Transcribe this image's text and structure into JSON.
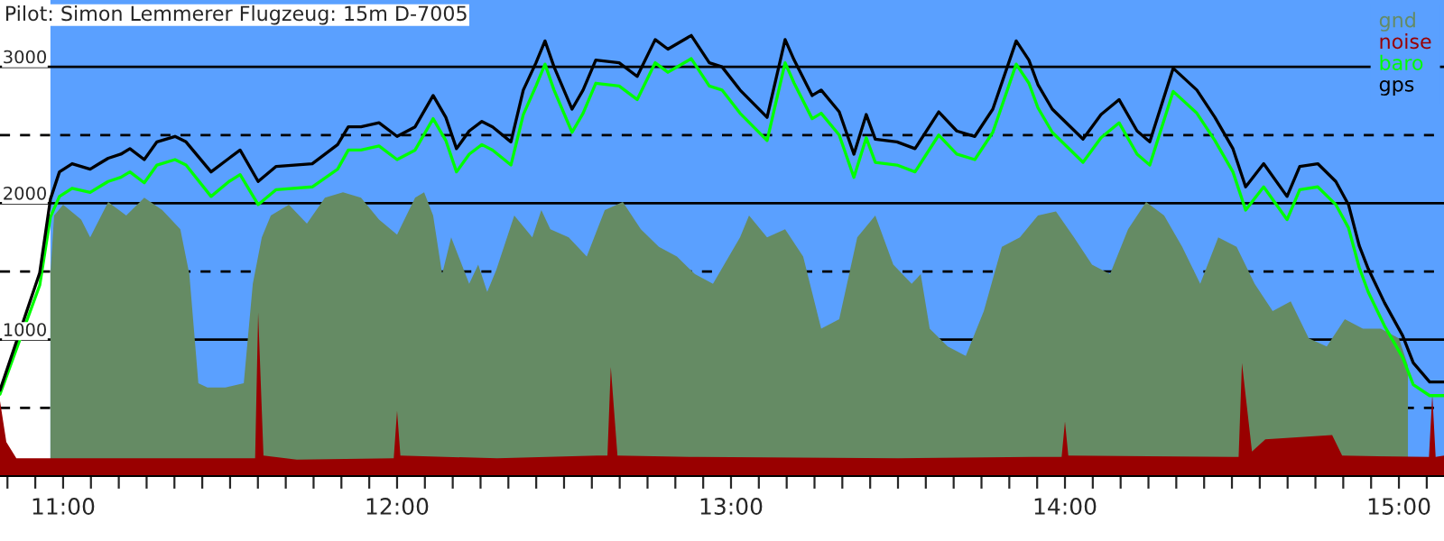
{
  "chart_data": {
    "type": "line",
    "title": "Pilot: Simon Lemmerer Flugzeug: 15m D-7005",
    "xlim": [
      10.811,
      15.135
    ],
    "ylim": [
      0,
      3490
    ],
    "xticks": [
      {
        "value": 10.8333,
        "label": null
      },
      {
        "value": 10.9167,
        "label": null
      },
      {
        "value": 11,
        "label": "11:00"
      },
      {
        "value": 11.0833,
        "label": null
      },
      {
        "value": 11.1667,
        "label": null
      },
      {
        "value": 11.25,
        "label": null
      },
      {
        "value": 11.3333,
        "label": null
      },
      {
        "value": 11.4167,
        "label": null
      },
      {
        "value": 11.5,
        "label": null
      },
      {
        "value": 11.5833,
        "label": null
      },
      {
        "value": 11.6667,
        "label": null
      },
      {
        "value": 11.75,
        "label": null
      },
      {
        "value": 11.8333,
        "label": null
      },
      {
        "value": 11.9167,
        "label": null
      },
      {
        "value": 12,
        "label": "12:00"
      },
      {
        "value": 12.0833,
        "label": null
      },
      {
        "value": 12.1667,
        "label": null
      },
      {
        "value": 12.25,
        "label": null
      },
      {
        "value": 12.3333,
        "label": null
      },
      {
        "value": 12.4167,
        "label": null
      },
      {
        "value": 12.5,
        "label": null
      },
      {
        "value": 12.5833,
        "label": null
      },
      {
        "value": 12.6667,
        "label": null
      },
      {
        "value": 12.75,
        "label": null
      },
      {
        "value": 12.8333,
        "label": null
      },
      {
        "value": 12.9167,
        "label": null
      },
      {
        "value": 13,
        "label": "13:00"
      },
      {
        "value": 13.0833,
        "label": null
      },
      {
        "value": 13.1667,
        "label": null
      },
      {
        "value": 13.25,
        "label": null
      },
      {
        "value": 13.3333,
        "label": null
      },
      {
        "value": 13.4167,
        "label": null
      },
      {
        "value": 13.5,
        "label": null
      },
      {
        "value": 13.5833,
        "label": null
      },
      {
        "value": 13.6667,
        "label": null
      },
      {
        "value": 13.75,
        "label": null
      },
      {
        "value": 13.8333,
        "label": null
      },
      {
        "value": 13.9167,
        "label": null
      },
      {
        "value": 14,
        "label": "14:00"
      },
      {
        "value": 14.0833,
        "label": null
      },
      {
        "value": 14.1667,
        "label": null
      },
      {
        "value": 14.25,
        "label": null
      },
      {
        "value": 14.3333,
        "label": null
      },
      {
        "value": 14.4167,
        "label": null
      },
      {
        "value": 14.5,
        "label": null
      },
      {
        "value": 14.5833,
        "label": null
      },
      {
        "value": 14.6667,
        "label": null
      },
      {
        "value": 14.75,
        "label": null
      },
      {
        "value": 14.8333,
        "label": null
      },
      {
        "value": 14.9167,
        "label": null
      },
      {
        "value": 15,
        "label": "15:00"
      },
      {
        "value": 15.0833,
        "label": null
      }
    ],
    "yticks": [
      {
        "value": 500,
        "label": null
      },
      1000,
      {
        "value": 1500,
        "label": null
      },
      2000,
      {
        "value": 2500,
        "label": null
      },
      3000
    ],
    "grid": "y",
    "legend": "top right",
    "bands": [
      {
        "axis": "x",
        "from": 10.962,
        "to": 15.135,
        "color": "#5aa0ff"
      }
    ],
    "series": [
      {
        "name": "gnd",
        "type": "area",
        "color": "#658b64",
        "x": [
          10.962,
          10.973,
          11.0,
          11.054,
          11.081,
          11.135,
          11.189,
          11.243,
          11.297,
          11.351,
          11.378,
          11.405,
          11.432,
          11.486,
          11.541,
          11.568,
          11.595,
          11.622,
          11.676,
          11.73,
          11.784,
          11.838,
          11.892,
          11.946,
          12.0,
          12.054,
          12.081,
          12.108,
          12.135,
          12.162,
          12.216,
          12.243,
          12.27,
          12.297,
          12.351,
          12.405,
          12.432,
          12.459,
          12.514,
          12.568,
          12.622,
          12.676,
          12.73,
          12.784,
          12.838,
          12.892,
          12.946,
          13.027,
          13.054,
          13.108,
          13.162,
          13.216,
          13.27,
          13.324,
          13.378,
          13.432,
          13.486,
          13.541,
          13.568,
          13.595,
          13.649,
          13.703,
          13.757,
          13.811,
          13.865,
          13.919,
          13.973,
          14.027,
          14.081,
          14.135,
          14.189,
          14.243,
          14.297,
          14.351,
          14.405,
          14.459,
          14.514,
          14.568,
          14.622,
          14.676,
          14.73,
          14.784,
          14.838,
          14.892,
          14.946,
          15.0,
          15.027
        ],
        "values": [
          1480,
          1910,
          1990,
          1880,
          1750,
          2010,
          1910,
          2040,
          1950,
          1810,
          1480,
          680,
          650,
          650,
          680,
          1410,
          1750,
          1910,
          1990,
          1850,
          2040,
          2080,
          2040,
          1880,
          1770,
          2040,
          2080,
          1910,
          1480,
          1750,
          1410,
          1550,
          1350,
          1510,
          1910,
          1750,
          1950,
          1810,
          1750,
          1610,
          1950,
          2010,
          1810,
          1680,
          1610,
          1480,
          1410,
          1750,
          1910,
          1750,
          1810,
          1610,
          1080,
          1150,
          1750,
          1910,
          1550,
          1410,
          1480,
          1080,
          950,
          880,
          1210,
          1680,
          1750,
          1910,
          1940,
          1750,
          1550,
          1480,
          1810,
          2010,
          1910,
          1680,
          1410,
          1750,
          1680,
          1410,
          1210,
          1280,
          1010,
          950,
          1150,
          1080,
          1080,
          1010,
          810
        ]
      },
      {
        "name": "noise",
        "type": "area",
        "color": "#990000",
        "x": [
          10.811,
          10.83,
          10.86,
          11.5,
          11.575,
          11.584,
          11.6,
          11.7,
          11.99,
          12.0,
          12.01,
          12.3,
          12.6,
          12.63,
          12.64,
          12.66,
          12.9,
          13.5,
          13.9,
          13.99,
          14.0,
          14.01,
          14.5,
          14.52,
          14.53,
          14.56,
          14.6,
          14.8,
          14.83,
          15.09,
          15.1,
          15.11,
          15.135
        ],
        "values": [
          550,
          250,
          130,
          130,
          130,
          1200,
          150,
          120,
          130,
          480,
          150,
          130,
          150,
          150,
          800,
          150,
          140,
          130,
          140,
          140,
          400,
          150,
          140,
          140,
          830,
          180,
          270,
          300,
          150,
          140,
          600,
          140,
          150
        ]
      },
      {
        "name": "baro",
        "color": "#00ff00",
        "x": [
          10.811,
          10.93,
          10.962,
          10.989,
          11.027,
          11.081,
          11.108,
          11.135,
          11.173,
          11.2,
          11.243,
          11.281,
          11.335,
          11.368,
          11.443,
          11.497,
          11.53,
          11.584,
          11.638,
          11.746,
          11.822,
          11.854,
          11.892,
          11.946,
          12.0,
          12.054,
          12.108,
          12.146,
          12.178,
          12.216,
          12.254,
          12.286,
          12.341,
          12.378,
          12.416,
          12.443,
          12.47,
          12.524,
          12.557,
          12.595,
          12.665,
          12.719,
          12.773,
          12.811,
          12.881,
          12.935,
          12.973,
          13.027,
          13.108,
          13.162,
          13.189,
          13.243,
          13.27,
          13.324,
          13.368,
          13.405,
          13.432,
          13.497,
          13.551,
          13.622,
          13.676,
          13.73,
          13.784,
          13.854,
          13.892,
          13.919,
          13.962,
          14.054,
          14.108,
          14.162,
          14.216,
          14.254,
          14.324,
          14.395,
          14.449,
          14.503,
          14.541,
          14.595,
          14.665,
          14.703,
          14.757,
          14.811,
          14.849,
          14.881,
          14.908,
          14.957,
          15.011,
          15.043,
          15.092,
          15.135
        ],
        "values": [
          600,
          1400,
          1900,
          2050,
          2110,
          2080,
          2120,
          2160,
          2190,
          2230,
          2150,
          2280,
          2320,
          2280,
          2050,
          2160,
          2210,
          1990,
          2100,
          2120,
          2250,
          2390,
          2390,
          2420,
          2320,
          2390,
          2620,
          2460,
          2230,
          2360,
          2430,
          2390,
          2280,
          2650,
          2860,
          3020,
          2830,
          2520,
          2660,
          2880,
          2860,
          2760,
          3030,
          2960,
          3060,
          2860,
          2830,
          2660,
          2460,
          3030,
          2880,
          2620,
          2660,
          2500,
          2190,
          2480,
          2300,
          2280,
          2230,
          2500,
          2360,
          2320,
          2520,
          3020,
          2880,
          2700,
          2520,
          2300,
          2480,
          2590,
          2360,
          2280,
          2820,
          2660,
          2460,
          2230,
          1950,
          2120,
          1880,
          2100,
          2120,
          1990,
          1820,
          1530,
          1350,
          1100,
          870,
          670,
          590,
          590
        ]
      },
      {
        "name": "gps",
        "color": "#000000",
        "x": [
          10.811,
          10.93,
          10.962,
          10.989,
          11.027,
          11.081,
          11.108,
          11.135,
          11.173,
          11.2,
          11.243,
          11.281,
          11.335,
          11.368,
          11.443,
          11.497,
          11.53,
          11.584,
          11.638,
          11.746,
          11.822,
          11.854,
          11.892,
          11.946,
          12.0,
          12.054,
          12.108,
          12.146,
          12.178,
          12.216,
          12.254,
          12.286,
          12.341,
          12.378,
          12.416,
          12.443,
          12.47,
          12.524,
          12.557,
          12.595,
          12.665,
          12.719,
          12.773,
          12.811,
          12.881,
          12.935,
          12.973,
          13.027,
          13.108,
          13.162,
          13.189,
          13.243,
          13.27,
          13.324,
          13.368,
          13.405,
          13.432,
          13.497,
          13.551,
          13.622,
          13.676,
          13.73,
          13.784,
          13.854,
          13.892,
          13.919,
          13.962,
          14.054,
          14.108,
          14.162,
          14.216,
          14.254,
          14.324,
          14.395,
          14.449,
          14.503,
          14.541,
          14.595,
          14.665,
          14.703,
          14.757,
          14.811,
          14.849,
          14.881,
          14.908,
          14.957,
          15.011,
          15.043,
          15.092,
          15.135
        ],
        "values": [
          630,
          1490,
          2030,
          2230,
          2290,
          2250,
          2290,
          2330,
          2360,
          2400,
          2320,
          2450,
          2490,
          2450,
          2230,
          2330,
          2390,
          2160,
          2270,
          2290,
          2430,
          2560,
          2560,
          2590,
          2490,
          2560,
          2790,
          2630,
          2400,
          2530,
          2600,
          2560,
          2450,
          2830,
          3030,
          3190,
          3000,
          2690,
          2830,
          3050,
          3030,
          2930,
          3200,
          3130,
          3230,
          3030,
          3000,
          2830,
          2630,
          3200,
          3050,
          2790,
          2830,
          2670,
          2360,
          2650,
          2470,
          2450,
          2400,
          2670,
          2530,
          2490,
          2690,
          3190,
          3050,
          2870,
          2690,
          2470,
          2650,
          2760,
          2530,
          2450,
          2990,
          2830,
          2630,
          2400,
          2120,
          2290,
          2050,
          2270,
          2290,
          2160,
          1990,
          1690,
          1520,
          1270,
          1030,
          830,
          690,
          690
        ]
      }
    ]
  }
}
